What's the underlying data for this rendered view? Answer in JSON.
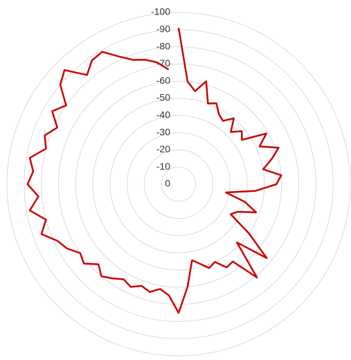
{
  "chart_data": {
    "type": "radar",
    "rlim": [
      0,
      -100
    ],
    "rticks": [
      0,
      -10,
      -20,
      -30,
      -40,
      -50,
      -60,
      -70,
      -80,
      -90,
      -100
    ],
    "grid": true,
    "series": [
      {
        "color": "#cc0000",
        "values": [
          -91,
          -60,
          -55,
          -62,
          -50,
          -52,
          -47,
          -45,
          -50,
          -43,
          -48,
          -45,
          -59,
          -52,
          -62,
          -56,
          -50,
          -60,
          -57,
          -45,
          -28,
          -40,
          -48,
          -38,
          -35,
          -50,
          -67,
          -48,
          -71,
          -55,
          -56,
          -50,
          -52,
          -48,
          -45,
          -60,
          -75,
          -65,
          -62,
          -65,
          -63,
          -66,
          -64,
          -67,
          -70,
          -66,
          -72,
          -70,
          -75,
          -78,
          -85,
          -80,
          -88,
          -82,
          -88,
          -85,
          -88,
          -80,
          -83,
          -78,
          -85,
          -80,
          -90,
          -94,
          -83,
          -88,
          -89,
          -82,
          -77,
          -75,
          -72,
          -67
        ]
      }
    ]
  }
}
